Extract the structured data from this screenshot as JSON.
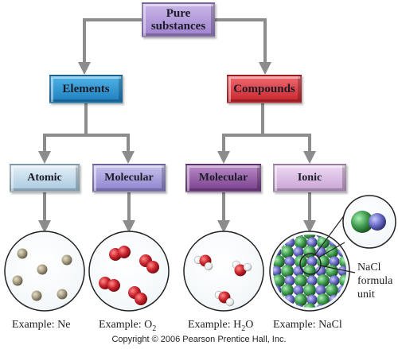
{
  "diagram": {
    "root": "Pure substances",
    "level1": [
      "Elements",
      "Compounds"
    ],
    "level2": {
      "atomic": "Atomic",
      "elements_molecular": "Molecular",
      "compounds_molecular": "Molecular",
      "ionic": "Ionic"
    },
    "examples": {
      "atomic": {
        "prefix": "Example: ",
        "formula": "Ne"
      },
      "elements_molecular": {
        "prefix": "Example: ",
        "base": "O",
        "sub": "2"
      },
      "compounds_molecular": {
        "prefix": "Example: ",
        "base": "H",
        "sub": "2",
        "suffix": "O"
      },
      "ionic": {
        "prefix": "Example: ",
        "formula": "NaCl"
      }
    },
    "nacl_label": [
      "NaCl",
      "formula",
      "unit"
    ],
    "copyright": "Copyright © 2006 Pearson Prentice Hall, Inc."
  },
  "colors": {
    "pure_substances": "#b39ddb",
    "elements": "#2f95d3",
    "compounds": "#d9393f",
    "atomic": "#c9e0ef",
    "elements_molecular": "#a9a2dd",
    "compounds_molecular": "#95589f",
    "ionic": "#dcbfe6",
    "arrow": "#8c8c8c",
    "neon_atom": "#a39a80",
    "oxygen_atom": "#c8222a",
    "hydrogen_atom": "#ffffff",
    "sodium_ion": "#6a6ac4",
    "chloride_ion": "#3f9a4d"
  }
}
